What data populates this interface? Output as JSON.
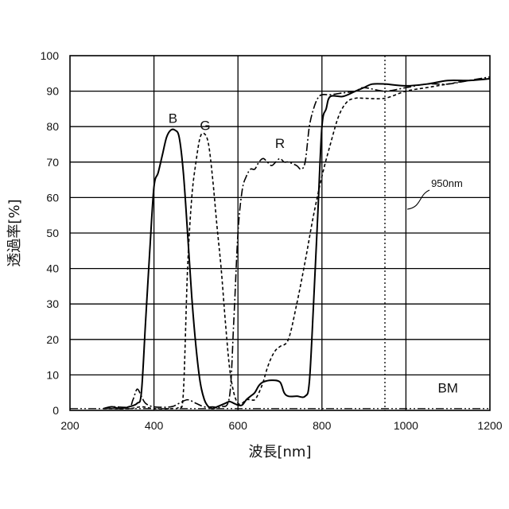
{
  "chart_data": {
    "type": "line",
    "title": "",
    "xlabel": "波長[nm]",
    "ylabel": "透過率[%]",
    "xlim": [
      200,
      1200
    ],
    "ylim": [
      0,
      100
    ],
    "x_ticks": [
      200,
      400,
      600,
      800,
      1000,
      1200
    ],
    "y_ticks": [
      0,
      10,
      20,
      30,
      40,
      50,
      60,
      70,
      80,
      90,
      100
    ],
    "grid": true,
    "series": [
      {
        "name": "B",
        "style": "solid",
        "points": [
          [
            280,
            0.5
          ],
          [
            300,
            1
          ],
          [
            320,
            0.5
          ],
          [
            340,
            1
          ],
          [
            360,
            2
          ],
          [
            370,
            5
          ],
          [
            380,
            25
          ],
          [
            390,
            45
          ],
          [
            400,
            63
          ],
          [
            410,
            67
          ],
          [
            420,
            72
          ],
          [
            430,
            77
          ],
          [
            440,
            79
          ],
          [
            450,
            79
          ],
          [
            460,
            77
          ],
          [
            470,
            67
          ],
          [
            480,
            50
          ],
          [
            490,
            32
          ],
          [
            500,
            18
          ],
          [
            510,
            8
          ],
          [
            520,
            3
          ],
          [
            530,
            1
          ],
          [
            540,
            0.5
          ],
          [
            550,
            1
          ],
          [
            560,
            1.5
          ],
          [
            570,
            2
          ],
          [
            580,
            2.5
          ],
          [
            590,
            2
          ],
          [
            600,
            1.5
          ],
          [
            610,
            1.5
          ],
          [
            620,
            3
          ],
          [
            630,
            4
          ],
          [
            640,
            5
          ],
          [
            650,
            7
          ],
          [
            660,
            8
          ],
          [
            680,
            8.5
          ],
          [
            700,
            8
          ],
          [
            710,
            5
          ],
          [
            720,
            4
          ],
          [
            740,
            4
          ],
          [
            760,
            4
          ],
          [
            770,
            8
          ],
          [
            780,
            30
          ],
          [
            790,
            55
          ],
          [
            800,
            80
          ],
          [
            810,
            85
          ],
          [
            820,
            88.5
          ],
          [
            850,
            88.5
          ],
          [
            880,
            90
          ],
          [
            900,
            91
          ],
          [
            920,
            92
          ],
          [
            950,
            92
          ],
          [
            1000,
            91.5
          ],
          [
            1050,
            92
          ],
          [
            1100,
            93
          ],
          [
            1150,
            93
          ],
          [
            1200,
            93.5
          ]
        ]
      },
      {
        "name": "G",
        "style": "dashed",
        "points": [
          [
            280,
            0.5
          ],
          [
            340,
            0.5
          ],
          [
            370,
            1
          ],
          [
            400,
            0.5
          ],
          [
            440,
            0.5
          ],
          [
            460,
            1
          ],
          [
            470,
            5
          ],
          [
            480,
            40
          ],
          [
            490,
            60
          ],
          [
            500,
            70
          ],
          [
            510,
            77
          ],
          [
            520,
            78
          ],
          [
            530,
            75
          ],
          [
            540,
            65
          ],
          [
            550,
            52
          ],
          [
            560,
            40
          ],
          [
            570,
            25
          ],
          [
            580,
            12
          ],
          [
            590,
            5
          ],
          [
            600,
            2
          ],
          [
            610,
            2
          ],
          [
            620,
            3
          ],
          [
            630,
            3
          ],
          [
            640,
            3
          ],
          [
            650,
            5
          ],
          [
            660,
            8
          ],
          [
            670,
            12
          ],
          [
            680,
            15
          ],
          [
            690,
            17
          ],
          [
            700,
            18
          ],
          [
            720,
            20
          ],
          [
            740,
            30
          ],
          [
            760,
            42
          ],
          [
            780,
            55
          ],
          [
            800,
            66
          ],
          [
            820,
            75
          ],
          [
            840,
            83
          ],
          [
            860,
            87
          ],
          [
            880,
            88
          ],
          [
            900,
            88
          ],
          [
            950,
            88
          ],
          [
            1000,
            90
          ],
          [
            1050,
            91
          ],
          [
            1100,
            92
          ],
          [
            1150,
            93
          ],
          [
            1200,
            93.5
          ]
        ]
      },
      {
        "name": "R",
        "style": "dash-dot",
        "points": [
          [
            280,
            0.5
          ],
          [
            300,
            1
          ],
          [
            340,
            1
          ],
          [
            350,
            3
          ],
          [
            360,
            6
          ],
          [
            370,
            4
          ],
          [
            380,
            2
          ],
          [
            400,
            1
          ],
          [
            440,
            1
          ],
          [
            460,
            2
          ],
          [
            480,
            3
          ],
          [
            500,
            2
          ],
          [
            520,
            1
          ],
          [
            540,
            1
          ],
          [
            560,
            1
          ],
          [
            580,
            4
          ],
          [
            590,
            25
          ],
          [
            600,
            50
          ],
          [
            610,
            62
          ],
          [
            620,
            66
          ],
          [
            630,
            68
          ],
          [
            640,
            68
          ],
          [
            650,
            70
          ],
          [
            660,
            71
          ],
          [
            670,
            70
          ],
          [
            680,
            69
          ],
          [
            690,
            70
          ],
          [
            700,
            71
          ],
          [
            710,
            70
          ],
          [
            720,
            70
          ],
          [
            740,
            69
          ],
          [
            750,
            68
          ],
          [
            760,
            70
          ],
          [
            770,
            80
          ],
          [
            780,
            85
          ],
          [
            790,
            88
          ],
          [
            800,
            89
          ],
          [
            820,
            89
          ],
          [
            850,
            89.5
          ],
          [
            880,
            90
          ],
          [
            900,
            91
          ],
          [
            950,
            90
          ],
          [
            1000,
            91
          ],
          [
            1050,
            92
          ],
          [
            1100,
            92
          ],
          [
            1150,
            93
          ],
          [
            1200,
            94
          ]
        ]
      }
    ],
    "annotations": [
      {
        "text": "B",
        "x": 445,
        "y": 81
      },
      {
        "text": "G",
        "x": 522,
        "y": 79
      },
      {
        "text": "R",
        "x": 700,
        "y": 74
      },
      {
        "text": "950nm",
        "x": 1060,
        "y": 63
      },
      {
        "text": "BM",
        "x": 1100,
        "y": 5
      }
    ],
    "reference_lines": [
      {
        "orientation": "vertical",
        "x": 950,
        "style": "dotted"
      },
      {
        "orientation": "horizontal",
        "y": 0.5,
        "style": "dash-dot-dot"
      }
    ]
  }
}
